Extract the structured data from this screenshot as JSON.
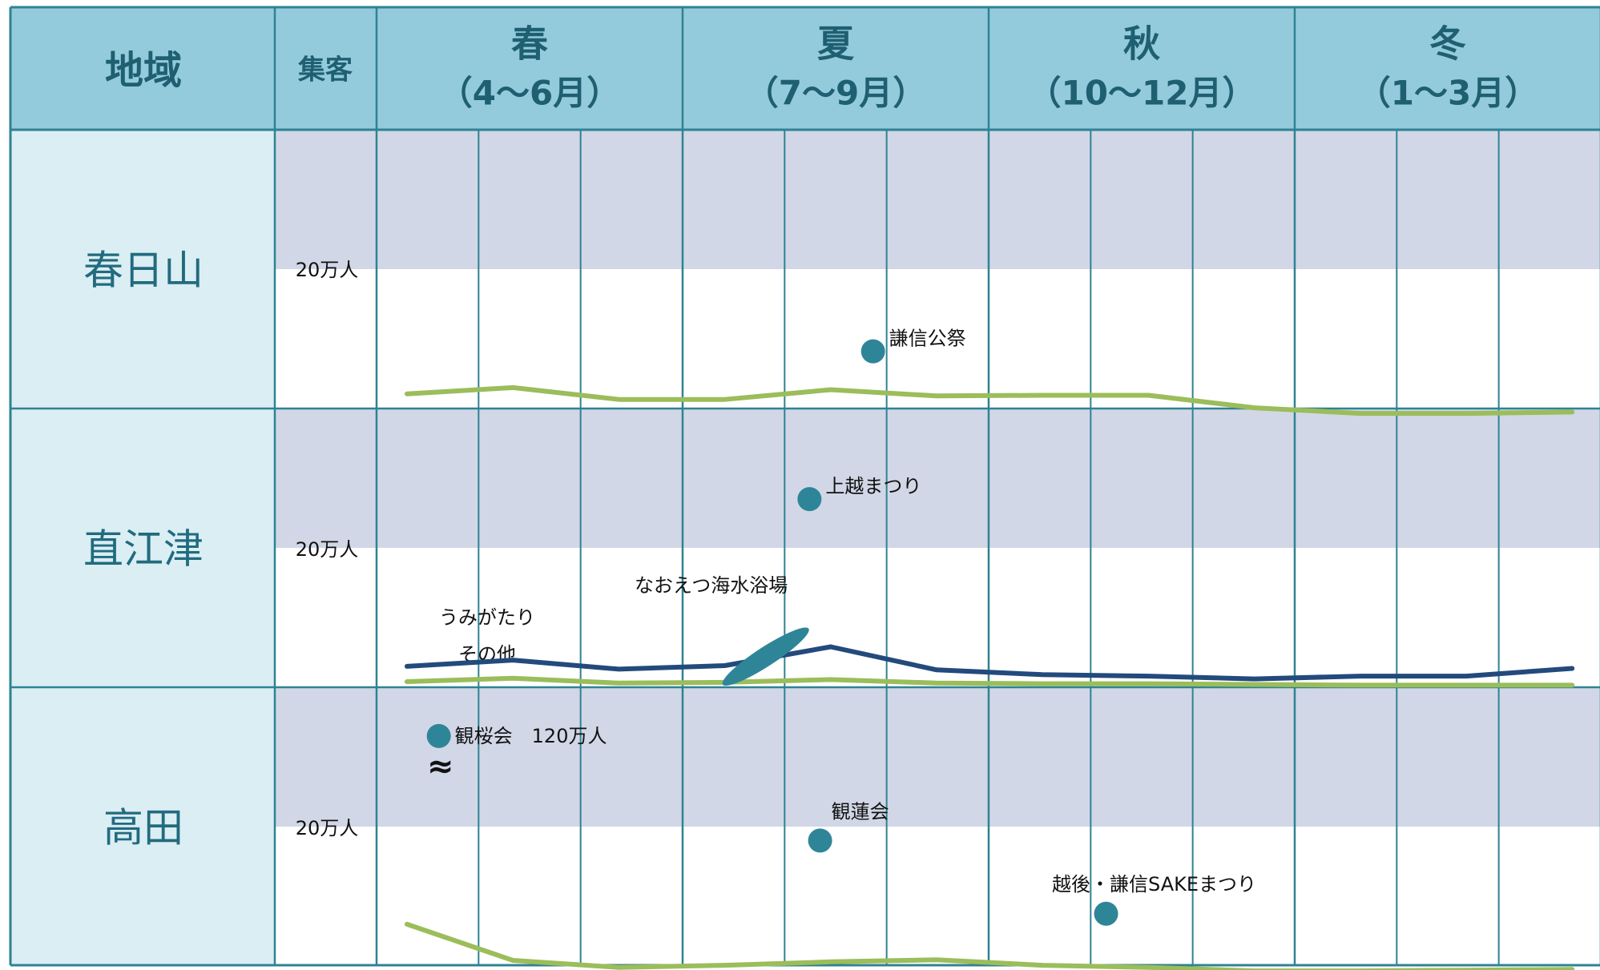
{
  "colors": {
    "header_bg": "#94cbdc",
    "region_bg": "#daeef4",
    "band_bg": "#d1d7e6",
    "grid": "#2f8293",
    "line_green": "#9bbd5a",
    "line_navy": "#234a7c",
    "marker": "#2f8598",
    "header_text": "#1f5f72"
  },
  "header": {
    "region": "地域",
    "visitors": "集客",
    "seasons": [
      {
        "name": "春",
        "months": "（4～6月）"
      },
      {
        "name": "夏",
        "months": "（7～9月）"
      },
      {
        "name": "秋",
        "months": "（10～12月）"
      },
      {
        "name": "冬",
        "months": "（1～3月）"
      }
    ]
  },
  "chart_data": {
    "type": "line",
    "months": [
      "4",
      "5",
      "6",
      "7",
      "8",
      "9",
      "10",
      "11",
      "12",
      "1",
      "2",
      "3"
    ],
    "scale_label": "20万人",
    "scale_value": 20,
    "y_max": 40,
    "grid": true,
    "regions": [
      {
        "name": "春日山",
        "series": [
          {
            "name": "",
            "color": "green",
            "values": [
              2.1,
              3.0,
              1.3,
              1.3,
              2.7,
              1.8,
              1.9,
              1.9,
              0.1,
              -0.7,
              -0.7,
              -0.5
            ]
          }
        ],
        "events": [
          {
            "label": "謙信公祭",
            "month": 8.4,
            "value": 8.2
          }
        ]
      },
      {
        "name": "直江津",
        "series": [
          {
            "name": "うみがたり",
            "color": "navy",
            "values": [
              3.0,
              3.9,
              2.6,
              3.1,
              5.8,
              2.5,
              1.8,
              1.6,
              1.2,
              1.6,
              1.6,
              2.7
            ]
          },
          {
            "name": "その他",
            "color": "green",
            "values": [
              0.8,
              1.3,
              0.6,
              0.7,
              1.1,
              0.6,
              0.5,
              0.5,
              0.4,
              0.3,
              0.3,
              0.3
            ]
          }
        ],
        "annotation": "なおえつ海水浴場",
        "events": [
          {
            "label": "上越まつり",
            "month": 7.8,
            "value": 27.0
          }
        ]
      },
      {
        "name": "高田",
        "series": [
          {
            "name": "",
            "color": "green",
            "values": [
              6.0,
              0.8,
              -0.2,
              0.1,
              0.6,
              0.9,
              0.1,
              -0.2,
              -0.7,
              -0.7,
              -0.6,
              -0.5
            ]
          }
        ],
        "events": [
          {
            "label": "観桜会",
            "value_label": "120万人",
            "month": 4.3,
            "value": 33.0,
            "break_symbol": "≈"
          },
          {
            "label": "観蓮会",
            "month": 7.9,
            "value": 18.0
          },
          {
            "label": "越後・謙信SAKEまつり",
            "month": 10.6,
            "value": 7.5
          }
        ]
      }
    ]
  }
}
